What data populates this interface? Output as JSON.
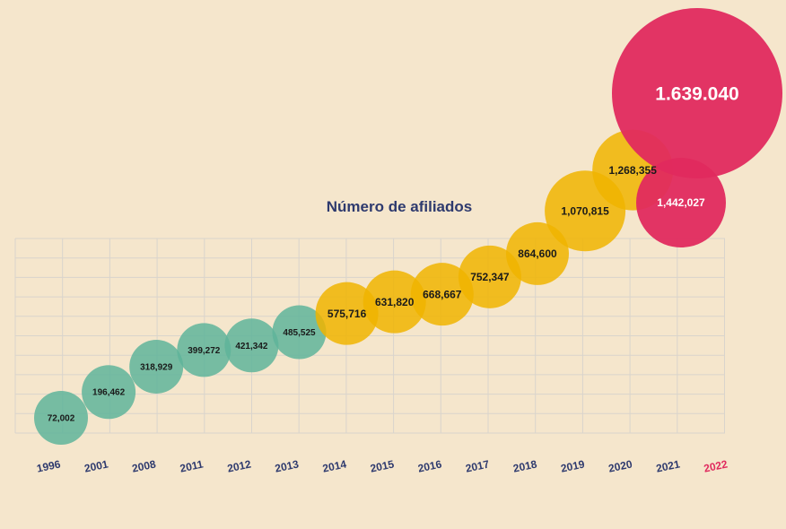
{
  "chart_data": {
    "type": "scatter",
    "title": "Número de afiliados",
    "xlabel": "",
    "ylabel": "",
    "grid": true,
    "categories": [
      "1996",
      "2001",
      "2008",
      "2011",
      "2012",
      "2013",
      "2014",
      "2015",
      "2016",
      "2017",
      "2018",
      "2019",
      "2020",
      "2021",
      "2022"
    ],
    "values": [
      72002,
      196462,
      318929,
      399272,
      421342,
      485525,
      575716,
      631820,
      668667,
      752347,
      864600,
      1070815,
      1268355,
      1442027,
      1639040
    ],
    "labels": [
      "72,002",
      "196,462",
      "318,929",
      "399,272",
      "421,342",
      "485,525",
      "575,716",
      "631,820",
      "668,667",
      "752,347",
      "864,600",
      "1,070,815",
      "1,268,355",
      "1,442,027",
      "1.639.040"
    ],
    "highlight_category": "2022",
    "colors": {
      "early": "#5fb49a",
      "middle": "#f0b400",
      "recent": "#e02a5e",
      "axis_text": "#2e3a6e",
      "highlight_text": "#e02a5e"
    }
  }
}
